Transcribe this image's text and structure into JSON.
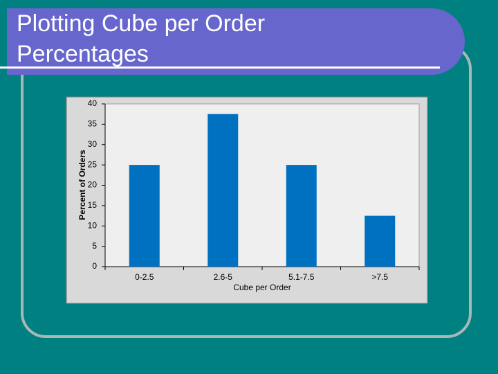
{
  "chart_data": {
    "type": "bar",
    "title": "Plotting Cube per Order Percentages",
    "categories": [
      "0-2.5",
      "2.6-5",
      "5.1-7.5",
      ">7.5"
    ],
    "values": [
      25,
      37.5,
      25,
      12.5
    ],
    "color": "#0070c0",
    "x_label": "Cube per Order",
    "y_label": "Percent of Orders",
    "ylim": [
      0,
      40
    ],
    "yticks": [
      0,
      5,
      10,
      15,
      20,
      25,
      30,
      35,
      40
    ],
    "grid": false
  }
}
